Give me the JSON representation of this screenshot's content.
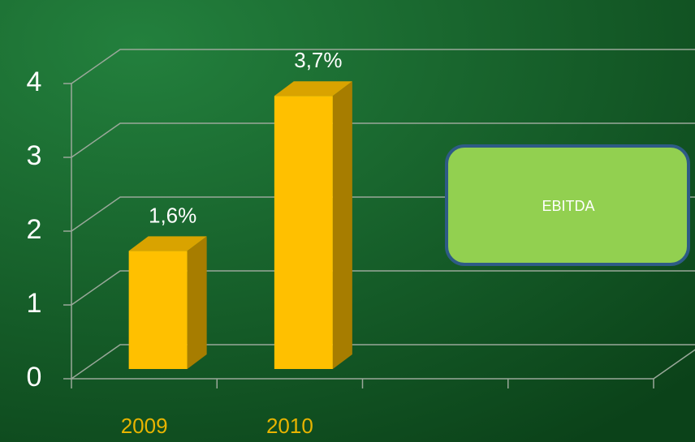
{
  "chart_data": {
    "type": "bar3d",
    "categories": [
      "2009",
      "2010"
    ],
    "series": [
      {
        "name": "EBITDA",
        "color": "#ffc000",
        "values": [
          1.6,
          3.7
        ],
        "value_labels": [
          "1,6%",
          "3,7%"
        ]
      }
    ],
    "ylim": [
      0,
      4
    ],
    "yticks": [
      0,
      1,
      2,
      3,
      4
    ],
    "grid": true,
    "legend": "right"
  }
}
